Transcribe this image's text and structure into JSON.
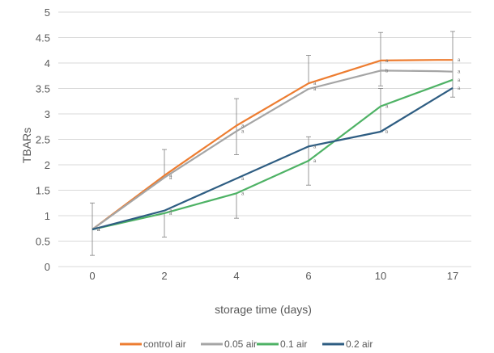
{
  "chart_data": {
    "type": "line",
    "xlabel": "storage time (days)",
    "ylabel": "TBARs",
    "categories": [
      "0",
      "2",
      "4",
      "6",
      "10",
      "17"
    ],
    "ylim": [
      0,
      5
    ],
    "yticks": [
      "0",
      "0.5",
      "1",
      "1.5",
      "2",
      "2.5",
      "3",
      "3.5",
      "4",
      "4.5",
      "5"
    ],
    "grid": true,
    "legend_position": "bottom",
    "series": [
      {
        "name": "control air",
        "color": "#ED7D31",
        "values": [
          0.73,
          1.79,
          2.77,
          3.6,
          4.05,
          4.06
        ],
        "extra_point_value": 4.06,
        "error_low": [
          0.22,
          null,
          2.2,
          null,
          3.55,
          3.33
        ],
        "error_high": [
          1.25,
          2.3,
          3.3,
          4.15,
          4.6,
          4.62
        ],
        "letters": [
          "a",
          "a",
          "a",
          "a",
          "a",
          "a"
        ]
      },
      {
        "name": "0.05 air",
        "color": "#A5A5A5",
        "values": [
          0.73,
          1.75,
          2.66,
          3.49,
          3.85,
          3.83
        ],
        "extra_point_value": 3.84,
        "error_low": [
          null,
          null,
          null,
          null,
          null,
          null
        ],
        "error_high": [
          null,
          null,
          null,
          null,
          null,
          null
        ],
        "letters": [
          "a",
          "a",
          "a",
          "a",
          "b",
          "a"
        ]
      },
      {
        "name": "0.1 air",
        "color": "#4EB265",
        "values": [
          0.73,
          1.05,
          1.44,
          2.08,
          3.15,
          3.67
        ],
        "error_low": [
          null,
          0.58,
          0.95,
          1.6,
          2.65,
          null
        ],
        "error_high": [
          null,
          null,
          null,
          2.55,
          3.5,
          null
        ],
        "letters": [
          "a",
          "a",
          "a",
          "a",
          "a",
          "a"
        ]
      },
      {
        "name": "0.2 air",
        "color": "#2E5D82",
        "values": [
          0.73,
          1.1,
          1.73,
          2.36,
          2.65,
          3.51
        ],
        "error_low": [
          null,
          null,
          null,
          null,
          null,
          null
        ],
        "error_high": [
          null,
          null,
          null,
          null,
          null,
          null
        ],
        "letters": [
          "a",
          "a",
          "a",
          "a",
          "b",
          "a"
        ]
      }
    ]
  }
}
